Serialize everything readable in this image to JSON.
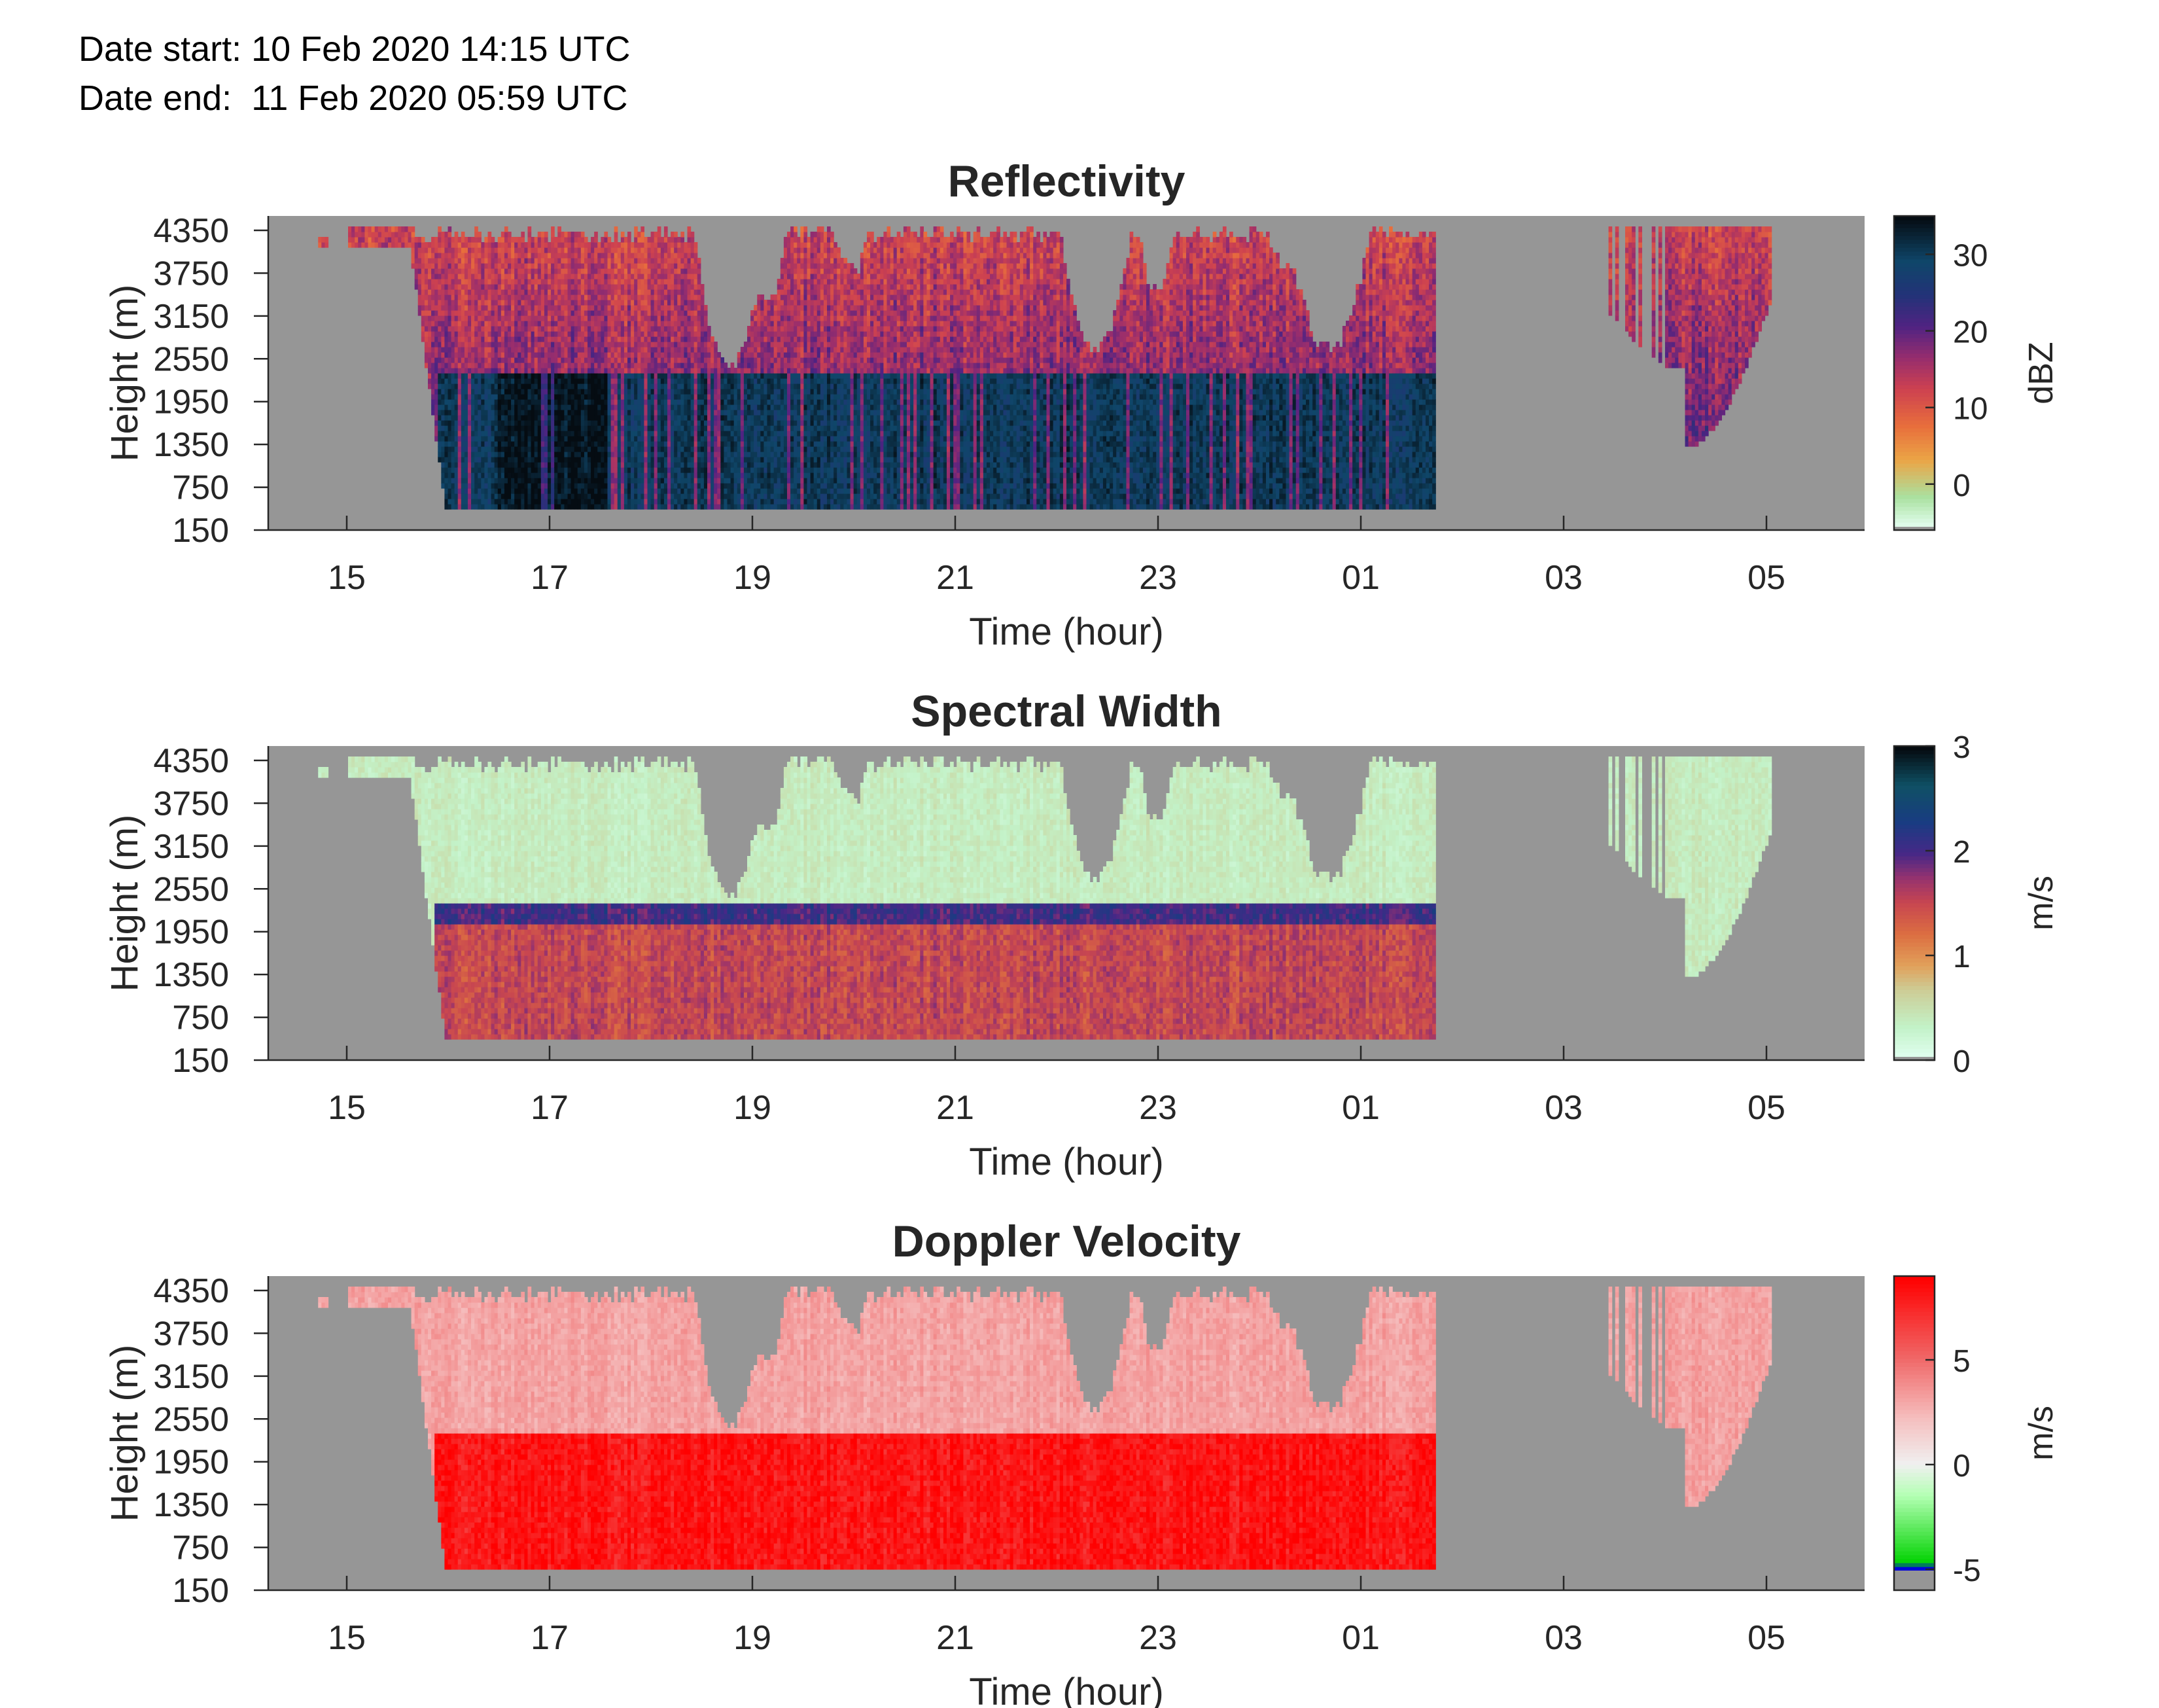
{
  "header": {
    "date_start_label": "Date start:",
    "date_start_value": "10 Feb 2020 14:15 UTC",
    "date_end_label": "Date end:",
    "date_end_value": "11 Feb 2020 05:59 UTC"
  },
  "colors": {
    "missing": "#969696",
    "figure_background": "#ffffff"
  },
  "chart_data": [
    {
      "type": "heatmap",
      "title": "Reflectivity",
      "xlabel": "Time (hour)",
      "ylabel": "Height (m)",
      "colorbar_label": "dBZ",
      "colorbar_ticks": [
        "0",
        "10",
        "20",
        "30"
      ],
      "colorbar_range": [
        -6,
        35
      ],
      "x_tick_labels": [
        "15",
        "17",
        "19",
        "21",
        "23",
        "01",
        "03",
        "05"
      ],
      "y_tick_labels": [
        "150",
        "750",
        "1350",
        "1950",
        "2550",
        "3150",
        "3750",
        "4350"
      ],
      "y_range_m": [
        150,
        4550
      ],
      "echo_layer": {
        "description_source": "estimated from image",
        "cloud_top_m": 4550,
        "dense_layer_top_m": 2000,
        "dense_layer_base_m": 400,
        "main_period_start_hour": "15:40",
        "main_period_end_hour": "01:45",
        "dense_layer_values_dbz": [
          25,
          32
        ],
        "upper_cloud_values_dbz": [
          5,
          18
        ]
      }
    },
    {
      "type": "heatmap",
      "title": "Spectral Width",
      "xlabel": "Time (hour)",
      "ylabel": "Height (m)",
      "colorbar_label": "m/s",
      "colorbar_ticks": [
        "0",
        "1",
        "2",
        "3"
      ],
      "colorbar_range": [
        0,
        3
      ],
      "x_tick_labels": [
        "15",
        "17",
        "19",
        "21",
        "23",
        "01",
        "03",
        "05"
      ],
      "y_tick_labels": [
        "150",
        "750",
        "1350",
        "1950",
        "2550",
        "3150",
        "3750",
        "4350"
      ],
      "y_range_m": [
        150,
        4550
      ],
      "echo_layer": {
        "upper_cloud_values_ms": [
          0.1,
          0.4
        ],
        "lower_layer_values_ms": [
          1.0,
          1.6
        ],
        "layer_top_band_values_ms": [
          1.6,
          2.1
        ]
      }
    },
    {
      "type": "heatmap",
      "title": "Doppler Velocity",
      "xlabel": "Time (hour)",
      "ylabel": "Height (m)",
      "colorbar_label": "m/s",
      "colorbar_ticks": [
        "-5",
        "0",
        "5"
      ],
      "colorbar_range": [
        -6,
        9
      ],
      "x_tick_labels": [
        "15",
        "17",
        "19",
        "21",
        "23",
        "01",
        "03",
        "05"
      ],
      "y_tick_labels": [
        "150",
        "750",
        "1350",
        "1950",
        "2550",
        "3150",
        "3750",
        "4350"
      ],
      "y_range_m": [
        150,
        4550
      ],
      "echo_layer": {
        "upper_cloud_values_ms": [
          1,
          3
        ],
        "lower_layer_values_ms": [
          6,
          8.5
        ]
      }
    }
  ]
}
